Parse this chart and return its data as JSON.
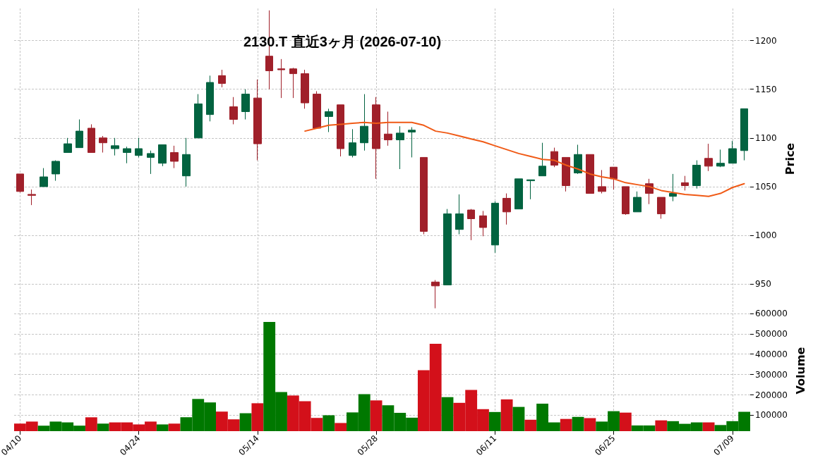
{
  "chart_data": [
    {
      "type": "candlestick",
      "title": "2130.T 直近3ヶ月 (2026-07-10)",
      "ylabel": "Price",
      "categories": [
        null,
        null,
        null,
        null,
        null,
        null,
        null,
        null,
        null,
        null,
        null,
        null,
        null,
        null,
        null,
        null,
        null,
        null,
        null,
        null,
        null,
        null,
        null,
        null,
        null,
        null,
        null,
        null,
        null,
        null,
        null,
        null,
        null,
        null,
        null,
        null,
        null,
        null,
        null,
        null,
        null,
        null,
        null,
        null,
        null,
        null,
        null,
        null,
        null,
        null,
        null,
        null,
        null,
        null,
        null,
        null,
        null,
        null,
        null,
        null,
        null,
        null
      ],
      "ohlc": [
        [
          1063,
          1063,
          1044,
          1045
        ],
        [
          1042,
          1047,
          1031,
          1041
        ],
        [
          1050,
          1069,
          1050,
          1060
        ],
        [
          1063,
          1077,
          1056,
          1076
        ],
        [
          1085,
          1100,
          1085,
          1094
        ],
        [
          1090,
          1119,
          1090,
          1107
        ],
        [
          1110,
          1114,
          1085,
          1085
        ],
        [
          1100,
          1102,
          1085,
          1095
        ],
        [
          1089,
          1100,
          1082,
          1092
        ],
        [
          1085,
          1091,
          1074,
          1089
        ],
        [
          1082,
          1100,
          1080,
          1089
        ],
        [
          1080,
          1087,
          1063,
          1084
        ],
        [
          1074,
          1093,
          1071,
          1093
        ],
        [
          1085,
          1092,
          1069,
          1076
        ],
        [
          1061,
          1100,
          1050,
          1083
        ],
        [
          1100,
          1145,
          1100,
          1135
        ],
        [
          1124,
          1164,
          1117,
          1157
        ],
        [
          1164,
          1170,
          1152,
          1156
        ],
        [
          1132,
          1142,
          1114,
          1119
        ],
        [
          1127,
          1150,
          1119,
          1145
        ],
        [
          1141,
          1160,
          1077,
          1094
        ],
        [
          1184,
          1231,
          1150,
          1169
        ],
        [
          1171,
          1181,
          1141,
          1170
        ],
        [
          1171,
          1172,
          1141,
          1166
        ],
        [
          1166,
          1170,
          1130,
          1136
        ],
        [
          1145,
          1148,
          1110,
          1110
        ],
        [
          1122,
          1130,
          1106,
          1127
        ],
        [
          1134,
          1134,
          1081,
          1089
        ],
        [
          1082,
          1109,
          1080,
          1095
        ],
        [
          1095,
          1145,
          1087,
          1112
        ],
        [
          1134,
          1142,
          1058,
          1089
        ],
        [
          1104,
          1127,
          1092,
          1098
        ],
        [
          1098,
          1112,
          1068,
          1105
        ],
        [
          1106,
          1111,
          1080,
          1108
        ],
        [
          1080,
          1080,
          1001,
          1004
        ],
        [
          952,
          954,
          925,
          948
        ],
        [
          949,
          1027,
          949,
          1022
        ],
        [
          1006,
          1042,
          1001,
          1022
        ],
        [
          1026,
          1027,
          995,
          1017
        ],
        [
          1020,
          1025,
          999,
          1008
        ],
        [
          990,
          1035,
          982,
          1033
        ],
        [
          1038,
          1043,
          1011,
          1024
        ],
        [
          1027,
          1058,
          1027,
          1058
        ],
        [
          1056,
          1057,
          1037,
          1057
        ],
        [
          1061,
          1095,
          1061,
          1071
        ],
        [
          1086,
          1090,
          1070,
          1072
        ],
        [
          1080,
          1080,
          1045,
          1051
        ],
        [
          1064,
          1093,
          1063,
          1083
        ],
        [
          1083,
          1083,
          1043,
          1043
        ],
        [
          1050,
          1067,
          1043,
          1045
        ],
        [
          1070,
          1070,
          1047,
          1058
        ],
        [
          1050,
          1050,
          1021,
          1022
        ],
        [
          1024,
          1045,
          1024,
          1039
        ],
        [
          1053,
          1058,
          1032,
          1043
        ],
        [
          1039,
          1039,
          1017,
          1022
        ],
        [
          1040,
          1063,
          1035,
          1043
        ],
        [
          1054,
          1061,
          1046,
          1051
        ],
        [
          1051,
          1077,
          1048,
          1072
        ],
        [
          1079,
          1094,
          1066,
          1071
        ],
        [
          1071,
          1088,
          1070,
          1074
        ],
        [
          1074,
          1097,
          1074,
          1089
        ],
        [
          1087,
          1130,
          1077,
          1130
        ]
      ],
      "colors": [
        "#a0202a",
        "#a0202a",
        "#026340",
        "#026340",
        "#026340",
        "#026340",
        "#a0202a",
        "#a0202a",
        "#026340",
        "#026340",
        "#026340",
        "#026340",
        "#026340",
        "#a0202a",
        "#026340",
        "#026340",
        "#026340",
        "#a0202a",
        "#a0202a",
        "#026340",
        "#a0202a",
        "#a0202a",
        "#a0202a",
        "#a0202a",
        "#a0202a",
        "#a0202a",
        "#026340",
        "#a0202a",
        "#026340",
        "#026340",
        "#a0202a",
        "#a0202a",
        "#026340",
        "#026340",
        "#a0202a",
        "#a0202a",
        "#026340",
        "#026340",
        "#a0202a",
        "#a0202a",
        "#026340",
        "#a0202a",
        "#026340",
        "#026340",
        "#026340",
        "#a0202a",
        "#a0202a",
        "#026340",
        "#a0202a",
        "#a0202a",
        "#a0202a",
        "#a0202a",
        "#026340",
        "#a0202a",
        "#a0202a",
        "#026340",
        "#a0202a",
        "#026340",
        "#a0202a",
        "#026340",
        "#026340",
        "#026340"
      ],
      "series": [
        {
          "type": "line",
          "color": "#f05a16",
          "values": [
            null,
            null,
            null,
            null,
            null,
            null,
            null,
            null,
            null,
            null,
            null,
            null,
            null,
            null,
            null,
            null,
            null,
            null,
            null,
            null,
            null,
            null,
            null,
            null,
            1107,
            1110,
            1113,
            1114,
            1115,
            1116,
            1115,
            1116,
            1116,
            1116,
            1113,
            1107,
            1105,
            1102,
            1099,
            1096,
            1092,
            1088,
            1084,
            1081,
            1078,
            1077,
            1072,
            1068,
            1063,
            1060,
            1058,
            1054,
            1052,
            1050,
            1046,
            1044,
            1042,
            1041,
            1040,
            1043,
            1049,
            1053
          ]
        }
      ],
      "ylim": [
        924,
        1233
      ],
      "yticks": [
        950,
        1000,
        1050,
        1100,
        1150,
        1200
      ],
      "grid": true
    },
    {
      "type": "bar",
      "ylabel": "Volume",
      "categories": [
        "04/10",
        null,
        null,
        null,
        null,
        null,
        null,
        null,
        null,
        null,
        "04/24",
        null,
        null,
        null,
        null,
        null,
        null,
        null,
        null,
        null,
        "05/14",
        null,
        null,
        null,
        null,
        null,
        null,
        null,
        null,
        null,
        "05/28",
        null,
        null,
        null,
        null,
        null,
        null,
        null,
        null,
        null,
        "06/11",
        null,
        null,
        null,
        null,
        null,
        null,
        null,
        null,
        null,
        "06/25",
        null,
        null,
        null,
        null,
        null,
        null,
        null,
        null,
        null,
        "07/09",
        null
      ],
      "values": [
        59000,
        69000,
        49000,
        69000,
        65000,
        49000,
        90000,
        59000,
        65000,
        65000,
        55000,
        69000,
        55000,
        59000,
        90000,
        180000,
        163000,
        118000,
        80000,
        110000,
        159000,
        558000,
        214000,
        197000,
        169000,
        87000,
        100000,
        62000,
        114000,
        204000,
        173000,
        149000,
        112000,
        88000,
        321000,
        451000,
        189000,
        161000,
        224000,
        130000,
        116000,
        178000,
        141000,
        78000,
        157000,
        65000,
        82000,
        92000,
        86000,
        69000,
        120000,
        113000,
        50000,
        50000,
        75000,
        71000,
        58000,
        65000,
        65000,
        52000,
        71000,
        117000
      ],
      "colors": [
        "#d3101a",
        "#d3101a",
        "#007800",
        "#007800",
        "#007800",
        "#007800",
        "#d3101a",
        "#007800",
        "#d3101a",
        "#d3101a",
        "#d3101a",
        "#d3101a",
        "#007800",
        "#d3101a",
        "#007800",
        "#007800",
        "#007800",
        "#d3101a",
        "#d3101a",
        "#007800",
        "#d3101a",
        "#007800",
        "#007800",
        "#d3101a",
        "#d3101a",
        "#d3101a",
        "#007800",
        "#d3101a",
        "#007800",
        "#007800",
        "#d3101a",
        "#007800",
        "#007800",
        "#007800",
        "#d3101a",
        "#d3101a",
        "#007800",
        "#d3101a",
        "#d3101a",
        "#d3101a",
        "#007800",
        "#d3101a",
        "#007800",
        "#d3101a",
        "#007800",
        "#007800",
        "#d3101a",
        "#007800",
        "#d3101a",
        "#007800",
        "#007800",
        "#d3101a",
        "#007800",
        "#007800",
        "#d3101a",
        "#007800",
        "#007800",
        "#007800",
        "#d3101a",
        "#007800",
        "#007800",
        "#007800"
      ],
      "ylim": [
        22000,
        617000
      ],
      "yticks": [
        100000,
        200000,
        300000,
        400000,
        500000,
        600000
      ],
      "grid": true
    }
  ]
}
